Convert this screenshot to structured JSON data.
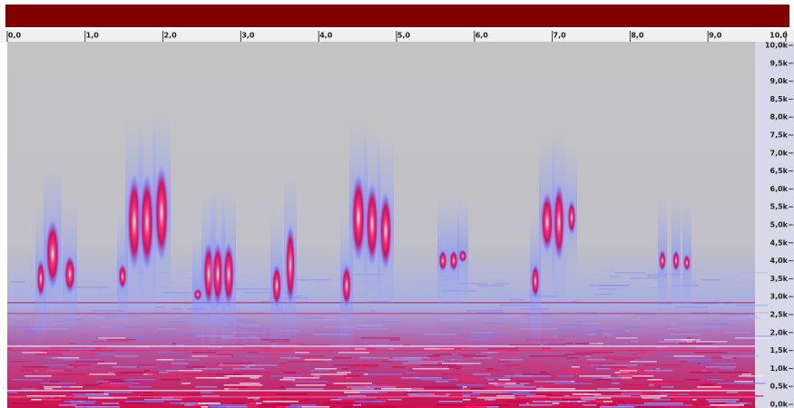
{
  "time_ruler": {
    "labels": [
      "0,0",
      "1,0",
      "2,0",
      "3,0",
      "4,0",
      "5,0",
      "6,0",
      "7,0",
      "8,0",
      "9,0",
      "10,0"
    ]
  },
  "frequency_ruler": {
    "labels": [
      "10,0k",
      "9,5k",
      "9,0k",
      "8,5k",
      "8,0k",
      "7,5k",
      "7,0k",
      "6,5k",
      "6,0k",
      "5,5k",
      "5,0k",
      "4,5k",
      "4,0k",
      "3,5k",
      "3,0k",
      "2,5k",
      "2,0k",
      "1,5k",
      "1,0k",
      "0,5k",
      "0,0k"
    ]
  }
}
